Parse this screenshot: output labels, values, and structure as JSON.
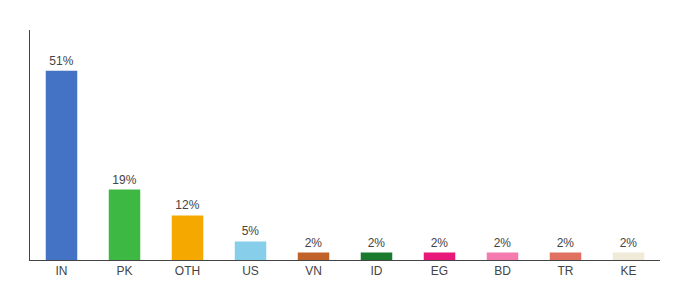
{
  "chart_data": {
    "type": "bar",
    "categories": [
      "IN",
      "PK",
      "OTH",
      "US",
      "VN",
      "ID",
      "EG",
      "BD",
      "TR",
      "KE"
    ],
    "values": [
      51,
      19,
      12,
      5,
      2,
      2,
      2,
      2,
      2,
      2
    ],
    "value_labels": [
      "51%",
      "19%",
      "12%",
      "5%",
      "2%",
      "2%",
      "2%",
      "2%",
      "2%",
      "2%"
    ],
    "colors": [
      "#4472c4",
      "#3cb843",
      "#f5a800",
      "#87ceeb",
      "#c0622a",
      "#1a7a2e",
      "#e8177a",
      "#f47ab0",
      "#e07060",
      "#f0ead8"
    ],
    "data_labels": true,
    "ylim": [
      0,
      62
    ],
    "grid": false,
    "tick_labels": "x"
  }
}
